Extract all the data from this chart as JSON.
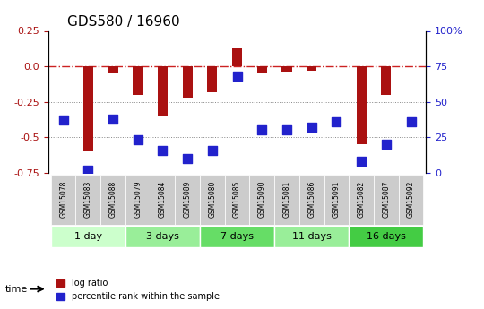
{
  "title": "GDS580 / 16960",
  "samples": [
    "GSM15078",
    "GSM15083",
    "GSM15088",
    "GSM15079",
    "GSM15084",
    "GSM15089",
    "GSM15080",
    "GSM15085",
    "GSM15090",
    "GSM15081",
    "GSM15086",
    "GSM15091",
    "GSM15082",
    "GSM15087",
    "GSM15092"
  ],
  "log_ratio": [
    0.0,
    -0.6,
    -0.05,
    -0.2,
    -0.35,
    -0.22,
    -0.18,
    0.13,
    -0.05,
    -0.04,
    -0.03,
    0.0,
    -0.55,
    -0.2,
    0.0
  ],
  "percentile_rank": [
    37,
    2,
    38,
    23,
    16,
    10,
    16,
    68,
    30,
    30,
    32,
    36,
    8,
    20,
    36
  ],
  "groups": [
    {
      "label": "1 day",
      "start": 0,
      "end": 3,
      "color": "#ccffcc"
    },
    {
      "label": "3 days",
      "start": 3,
      "end": 6,
      "color": "#99ee99"
    },
    {
      "label": "7 days",
      "start": 6,
      "end": 9,
      "color": "#66dd66"
    },
    {
      "label": "11 days",
      "start": 9,
      "end": 12,
      "color": "#99ee99"
    },
    {
      "label": "16 days",
      "start": 12,
      "end": 15,
      "color": "#44cc44"
    }
  ],
  "ylim": [
    -0.75,
    0.25
  ],
  "yticks_left": [
    0.25,
    0.0,
    -0.25,
    -0.5,
    -0.75
  ],
  "yticks_right": [
    100,
    75,
    50,
    25,
    0
  ],
  "bar_color": "#aa1111",
  "dot_color": "#2222cc",
  "hline_color": "#cc2222",
  "grid_color": "#888888",
  "sample_box_color": "#cccccc",
  "time_label": "time",
  "legend_log_ratio": "log ratio",
  "legend_percentile": "percentile rank within the sample",
  "bar_width": 0.4,
  "dot_size": 55
}
